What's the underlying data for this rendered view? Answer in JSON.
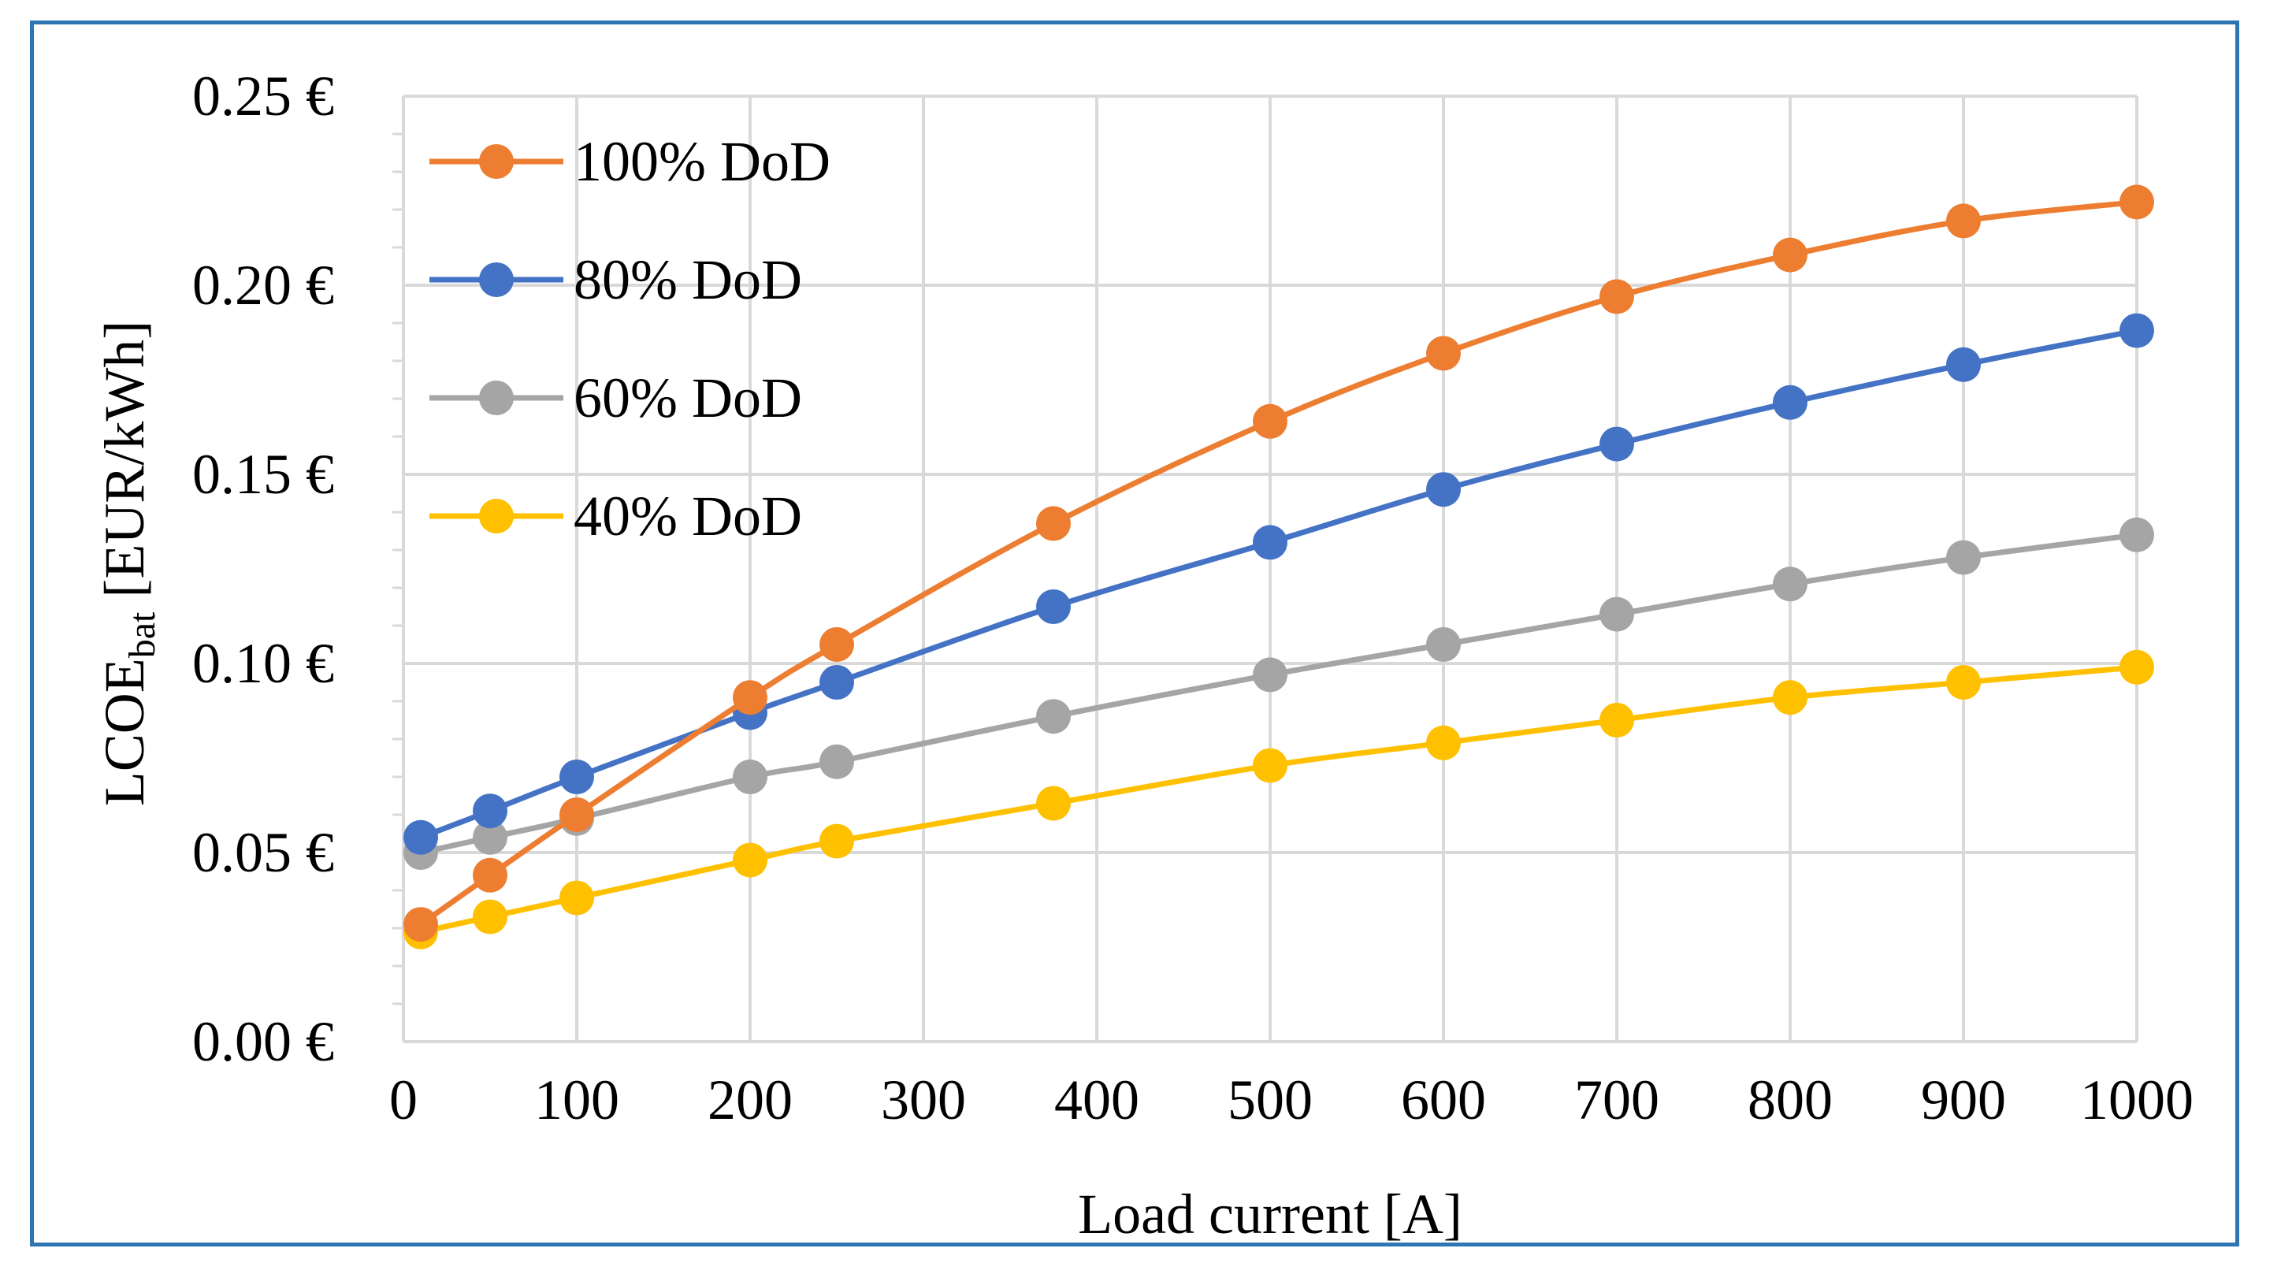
{
  "chart_data": {
    "type": "line",
    "title": "",
    "xlabel": "Load current [A]",
    "ylabel_main": "LCOE",
    "ylabel_sub": "bat",
    "ylabel_unit": " [EUR/kWh]",
    "xlim": [
      0,
      1000
    ],
    "ylim": [
      0,
      0.25
    ],
    "x_ticks": [
      0,
      100,
      200,
      300,
      400,
      500,
      600,
      700,
      800,
      900,
      1000
    ],
    "x_tick_labels": [
      "0",
      "100",
      "200",
      "300",
      "400",
      "500",
      "600",
      "700",
      "800",
      "900",
      "1000"
    ],
    "y_ticks": [
      0,
      0.05,
      0.1,
      0.15,
      0.2,
      0.25
    ],
    "y_tick_labels": [
      "0.00 €",
      "0.05 €",
      "0.10 €",
      "0.15 €",
      "0.20 €",
      "0.25 €"
    ],
    "grid": true,
    "legend_position": "top-left",
    "x": [
      10,
      50,
      100,
      200,
      250,
      375,
      500,
      600,
      700,
      800,
      900,
      1000
    ],
    "series": [
      {
        "name": "100% DoD",
        "color": "#ed7d31",
        "values": [
          0.031,
          0.044,
          0.06,
          0.091,
          0.105,
          0.137,
          0.164,
          0.182,
          0.197,
          0.208,
          0.217,
          0.222
        ]
      },
      {
        "name": "80% DoD",
        "color": "#4472c4",
        "values": [
          0.054,
          0.061,
          0.07,
          0.087,
          0.095,
          0.115,
          0.132,
          0.146,
          0.158,
          0.169,
          0.179,
          0.188
        ]
      },
      {
        "name": "60% DoD",
        "color": "#a5a5a5",
        "values": [
          0.05,
          0.054,
          0.059,
          0.07,
          0.074,
          0.086,
          0.097,
          0.105,
          0.113,
          0.121,
          0.128,
          0.134
        ]
      },
      {
        "name": "40% DoD",
        "color": "#ffc000",
        "values": [
          0.029,
          0.033,
          0.038,
          0.048,
          0.053,
          0.063,
          0.073,
          0.079,
          0.085,
          0.091,
          0.095,
          0.099
        ]
      }
    ]
  }
}
